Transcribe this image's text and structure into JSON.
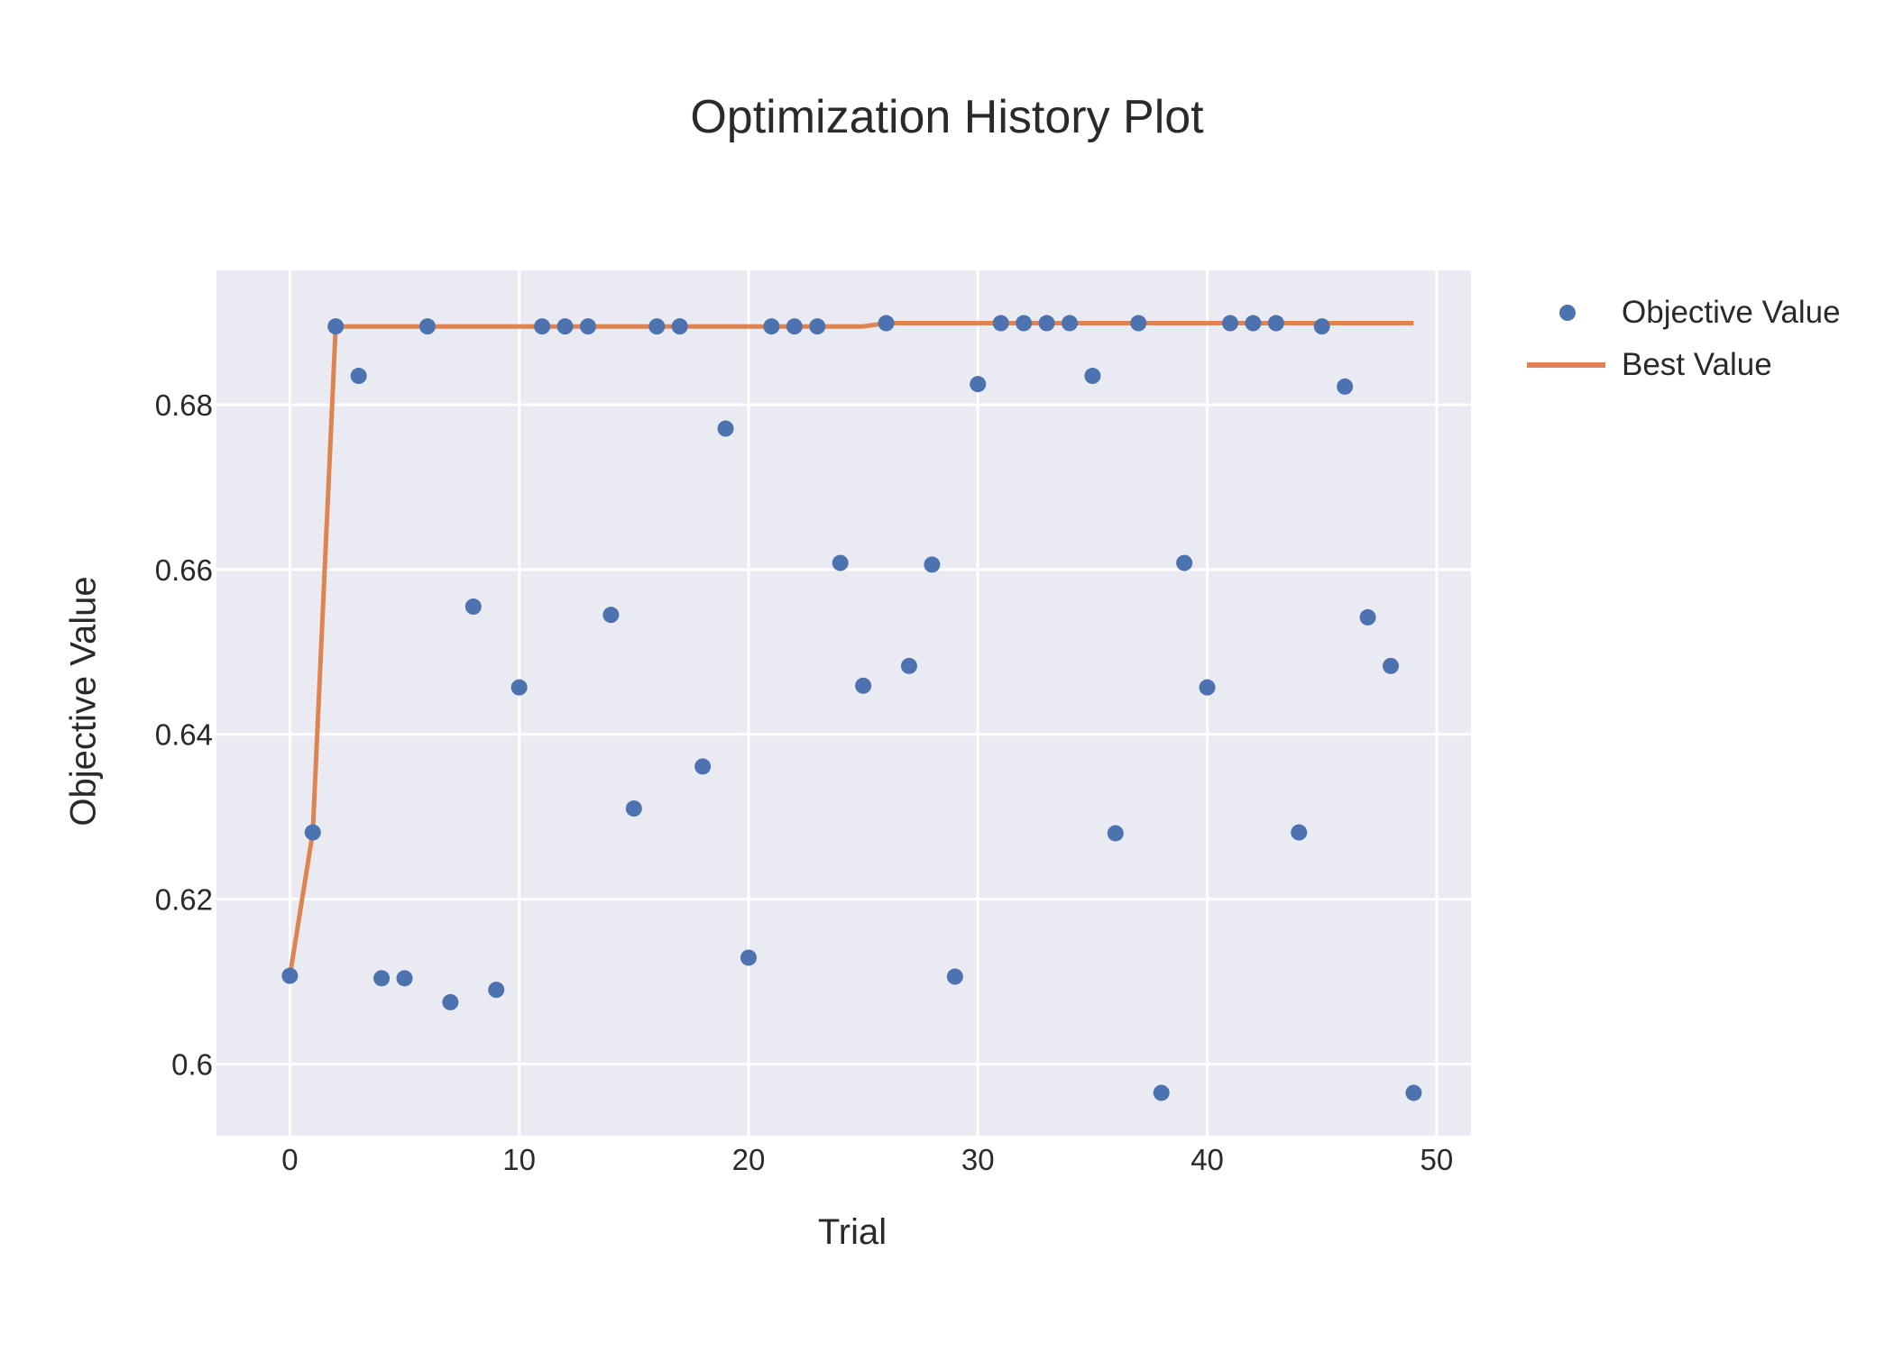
{
  "chart_data": {
    "type": "scatter",
    "title": "Optimization History Plot",
    "xlabel": "Trial",
    "ylabel": "Objective Value",
    "xlim": [
      -3.2,
      51.5
    ],
    "ylim": [
      0.5913,
      0.6963
    ],
    "x_ticks": [
      0,
      10,
      20,
      30,
      40,
      50
    ],
    "y_ticks": [
      0.6,
      0.62,
      0.64,
      0.66,
      0.68
    ],
    "y_tick_labels": [
      "0.6",
      "0.62",
      "0.64",
      "0.66",
      "0.68"
    ],
    "grid": true,
    "legend_position": "right-top",
    "colors": {
      "objective": "#4c72b0",
      "best": "#dd8452",
      "plot_bg": "#eaeaf2",
      "grid": "#ffffff"
    },
    "series": [
      {
        "name": "Objective Value",
        "mode": "markers",
        "x": [
          0,
          1,
          2,
          3,
          4,
          5,
          6,
          7,
          8,
          9,
          10,
          11,
          12,
          13,
          14,
          15,
          16,
          17,
          18,
          19,
          20,
          21,
          22,
          23,
          24,
          25,
          26,
          27,
          28,
          29,
          30,
          31,
          32,
          33,
          34,
          35,
          36,
          37,
          38,
          39,
          40,
          41,
          42,
          43,
          44,
          45,
          46,
          47,
          48,
          49
        ],
        "values": [
          0.6107,
          0.6281,
          0.6895,
          0.6835,
          0.6104,
          0.6104,
          0.6895,
          0.6075,
          0.6555,
          0.609,
          0.6457,
          0.6895,
          0.6895,
          0.6895,
          0.6545,
          0.631,
          0.6895,
          0.6895,
          0.6361,
          0.6771,
          0.6129,
          0.6895,
          0.6895,
          0.6895,
          0.6608,
          0.6459,
          0.6899,
          0.6483,
          0.6606,
          0.6106,
          0.6825,
          0.6899,
          0.6899,
          0.6899,
          0.6899,
          0.6835,
          0.628,
          0.6899,
          0.5965,
          0.6608,
          0.6457,
          0.6899,
          0.6899,
          0.6899,
          0.6281,
          0.6895,
          0.6822,
          0.6542,
          0.6483,
          0.5965
        ]
      },
      {
        "name": "Best Value",
        "mode": "line",
        "x": [
          0,
          1,
          2,
          3,
          4,
          5,
          6,
          7,
          8,
          9,
          10,
          11,
          12,
          13,
          14,
          15,
          16,
          17,
          18,
          19,
          20,
          21,
          22,
          23,
          24,
          25,
          26,
          27,
          28,
          29,
          30,
          31,
          32,
          33,
          34,
          35,
          36,
          37,
          38,
          39,
          40,
          41,
          42,
          43,
          44,
          45,
          46,
          47,
          48,
          49
        ],
        "values": [
          0.6107,
          0.6281,
          0.6895,
          0.6895,
          0.6895,
          0.6895,
          0.6895,
          0.6895,
          0.6895,
          0.6895,
          0.6895,
          0.6895,
          0.6895,
          0.6895,
          0.6895,
          0.6895,
          0.6895,
          0.6895,
          0.6895,
          0.6895,
          0.6895,
          0.6895,
          0.6895,
          0.6895,
          0.6895,
          0.6895,
          0.6899,
          0.6899,
          0.6899,
          0.6899,
          0.6899,
          0.6899,
          0.6899,
          0.6899,
          0.6899,
          0.6899,
          0.6899,
          0.6899,
          0.6899,
          0.6899,
          0.6899,
          0.6899,
          0.6899,
          0.6899,
          0.6899,
          0.6899,
          0.6899,
          0.6899,
          0.6899,
          0.6899
        ]
      }
    ]
  },
  "legend": {
    "items": [
      {
        "label": "Objective Value",
        "symbol": "dot"
      },
      {
        "label": "Best Value",
        "symbol": "line"
      }
    ]
  }
}
